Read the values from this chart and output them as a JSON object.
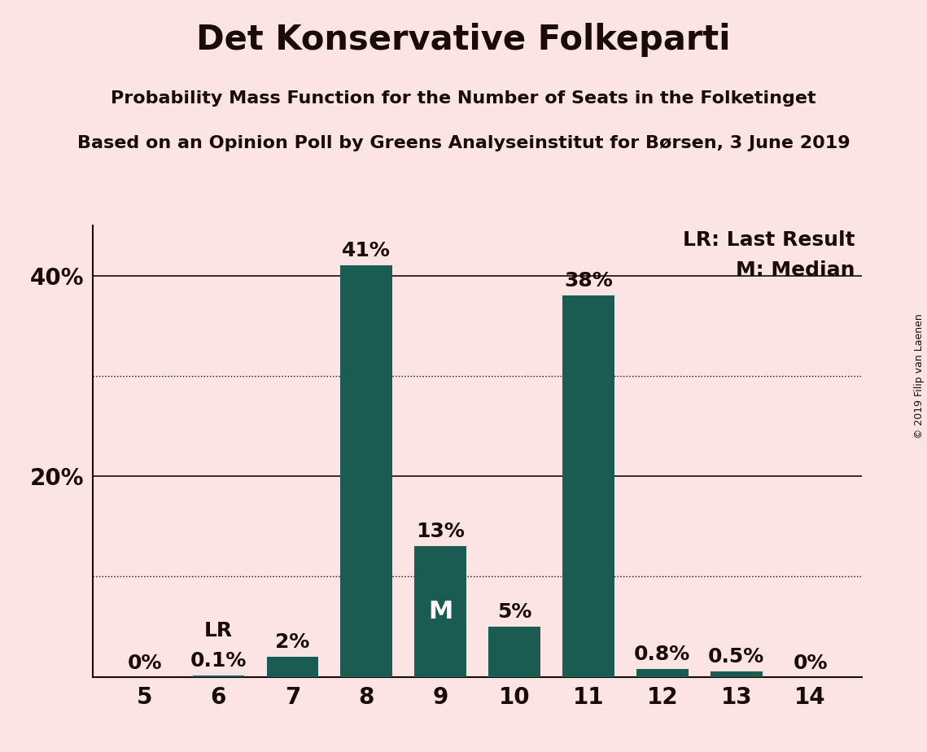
{
  "title": "Det Konservative Folkeparti",
  "subtitle1": "Probability Mass Function for the Number of Seats in the Folketinget",
  "subtitle2": "Based on an Opinion Poll by Greens Analyseinstitut for Børsen, 3 June 2019",
  "copyright": "© 2019 Filip van Laenen",
  "categories": [
    5,
    6,
    7,
    8,
    9,
    10,
    11,
    12,
    13,
    14
  ],
  "values": [
    0.0,
    0.1,
    2.0,
    41.0,
    13.0,
    5.0,
    38.0,
    0.8,
    0.5,
    0.0
  ],
  "labels": [
    "0%",
    "0.1%",
    "2%",
    "41%",
    "13%",
    "5%",
    "38%",
    "0.8%",
    "0.5%",
    "0%"
  ],
  "bar_color": "#1a5c52",
  "background_color": "#fce4e4",
  "text_color": "#1a0a0a",
  "median_bar": 9,
  "last_result_bar": 6,
  "legend_lr": "LR: Last Result",
  "legend_m": "M: Median",
  "ylim": [
    0,
    45
  ],
  "solid_gridlines": [
    20,
    40
  ],
  "dotted_gridlines": [
    10,
    30
  ],
  "ytick_positions": [
    20,
    40
  ],
  "ytick_labels": [
    "20%",
    "40%"
  ],
  "title_fontsize": 30,
  "subtitle_fontsize": 16,
  "label_fontsize": 18,
  "tick_fontsize": 20,
  "legend_fontsize": 18
}
